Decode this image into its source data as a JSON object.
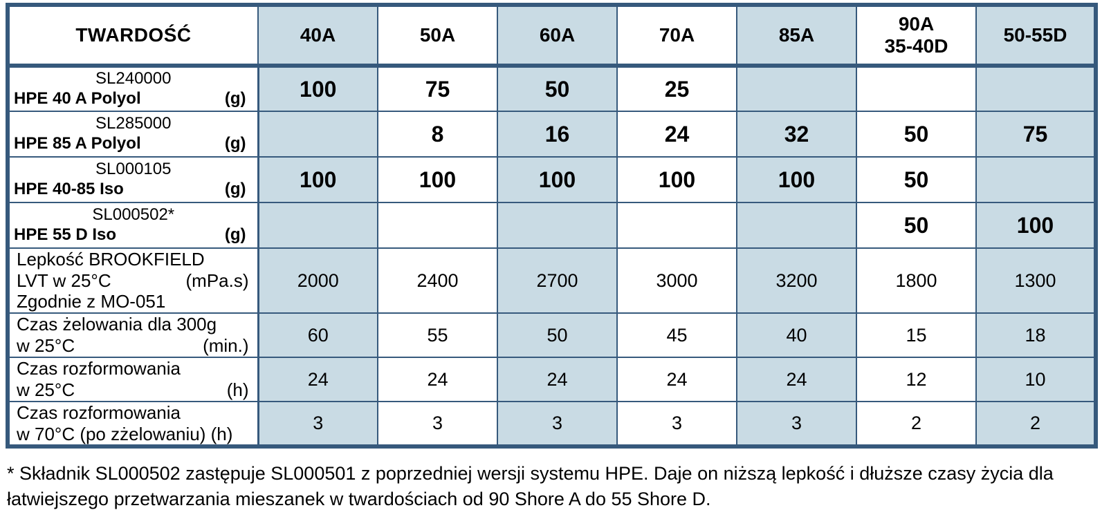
{
  "colors": {
    "border": "#36597C",
    "shaded_cell": "#C9DBE4",
    "background": "#FFFFFF",
    "text": "#000000"
  },
  "table": {
    "corner_label": "TWARDOŚĆ",
    "columns": [
      {
        "label": "40A",
        "shaded": true
      },
      {
        "label": "50A",
        "shaded": false
      },
      {
        "label": "60A",
        "shaded": true
      },
      {
        "label": "70A",
        "shaded": false
      },
      {
        "label": "85A",
        "shaded": true
      },
      {
        "label": "90A\n35-40D",
        "shaded": false
      },
      {
        "label": "50-55D",
        "shaded": true
      }
    ],
    "rows": [
      {
        "type": "product",
        "code": "SL240000",
        "name": "HPE 40 A Polyol",
        "unit": "(g)",
        "values": [
          "100",
          "75",
          "50",
          "25",
          "",
          "",
          ""
        ],
        "values_bold": true
      },
      {
        "type": "product",
        "code": "SL285000",
        "name": "HPE 85 A Polyol",
        "unit": "(g)",
        "values": [
          "",
          "8",
          "16",
          "24",
          "32",
          "50",
          "75"
        ],
        "values_bold": true
      },
      {
        "type": "product",
        "code": "SL000105",
        "name": "HPE 40-85 Iso",
        "unit": "(g)",
        "values": [
          "100",
          "100",
          "100",
          "100",
          "100",
          "50",
          ""
        ],
        "values_bold": true
      },
      {
        "type": "product",
        "code": "SL000502*",
        "name": "HPE 55 D Iso",
        "unit": "(g)",
        "values": [
          "",
          "",
          "",
          "",
          "",
          "50",
          "100"
        ],
        "values_bold": true
      },
      {
        "type": "property",
        "lines": [
          {
            "text": "Lepkość BROOKFIELD",
            "unit": ""
          },
          {
            "text": "LVT w 25°C",
            "unit": "(mPa.s)"
          },
          {
            "text": "Zgodnie z MO-051",
            "unit": ""
          }
        ],
        "values": [
          "2000",
          "2400",
          "2700",
          "3000",
          "3200",
          "1800",
          "1300"
        ],
        "values_bold": false
      },
      {
        "type": "property",
        "lines": [
          {
            "text": "Czas żelowania dla 300g",
            "unit": ""
          },
          {
            "text": "w 25°C",
            "unit": "(min.)"
          }
        ],
        "values": [
          "60",
          "55",
          "50",
          "45",
          "40",
          "15",
          "18"
        ],
        "values_bold": false
      },
      {
        "type": "property",
        "lines": [
          {
            "text": "Czas rozformowania",
            "unit": ""
          },
          {
            "text": "w 25°C",
            "unit": "(h)"
          }
        ],
        "values": [
          "24",
          "24",
          "24",
          "24",
          "24",
          "12",
          "10"
        ],
        "values_bold": false
      },
      {
        "type": "property",
        "lines": [
          {
            "text": "Czas rozformowania",
            "unit": ""
          },
          {
            "text": "w 70°C (po zżelowaniu) (h)",
            "unit": ""
          }
        ],
        "values": [
          "3",
          "3",
          "3",
          "3",
          "3",
          "2",
          "2"
        ],
        "values_bold": false
      }
    ]
  },
  "footnote": "* Składnik SL000502 zastępuje SL000501 z poprzedniej wersji systemu HPE. Daje on niższą lepkość i dłuższe czasy życia dla łatwiejszego przetwarzania mieszanek w twardościach od 90 Shore A do 55 Shore D."
}
